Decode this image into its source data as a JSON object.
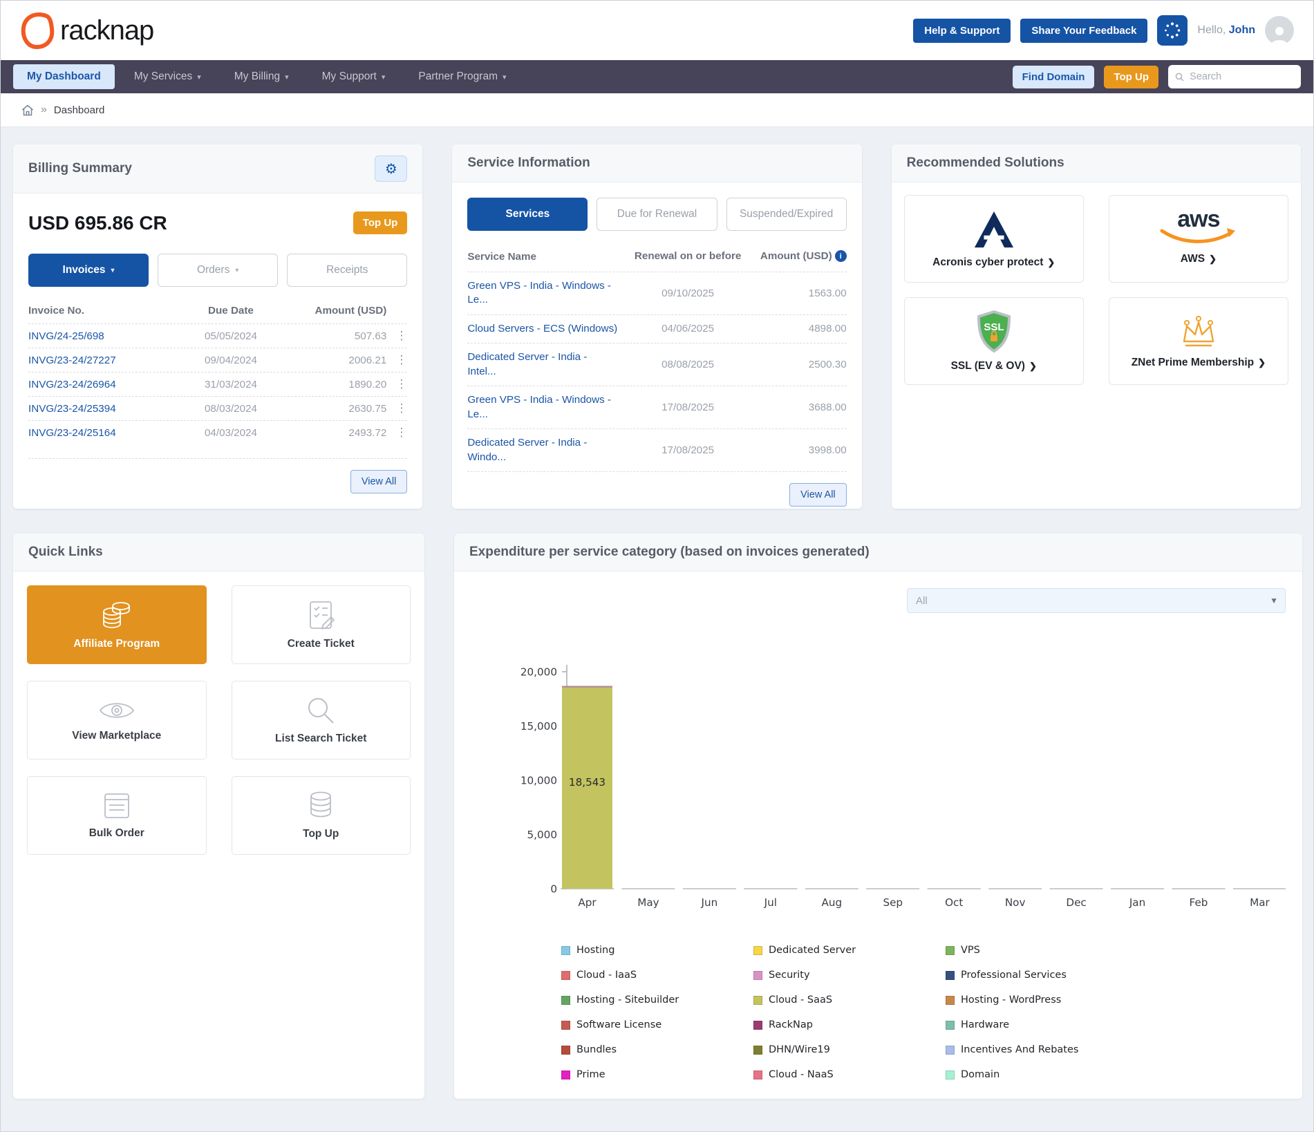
{
  "header": {
    "brand": "racknap",
    "help_button": "Help & Support",
    "feedback_button": "Share Your Feedback",
    "greeting_prefix": "Hello,",
    "greeting_name": "John"
  },
  "nav": {
    "items": [
      {
        "label": "My Dashboard"
      },
      {
        "label": "My Services"
      },
      {
        "label": "My Billing"
      },
      {
        "label": "My Support"
      },
      {
        "label": "Partner Program"
      }
    ],
    "find_domain": "Find Domain",
    "top_up": "Top Up",
    "search_placeholder": "Search"
  },
  "breadcrumb": {
    "separator": "»",
    "current": "Dashboard"
  },
  "billing": {
    "title": "Billing Summary",
    "balance": "USD 695.86 CR",
    "top_up": "Top Up",
    "tabs": {
      "invoices": "Invoices",
      "orders": "Orders",
      "receipts": "Receipts"
    },
    "columns": {
      "invoice": "Invoice No.",
      "due": "Due Date",
      "amount": "Amount (USD)"
    },
    "rows": [
      {
        "invoice": "INVG/24-25/698",
        "due": "05/05/2024",
        "amount": "507.63"
      },
      {
        "invoice": "INVG/23-24/27227",
        "due": "09/04/2024",
        "amount": "2006.21"
      },
      {
        "invoice": "INVG/23-24/26964",
        "due": "31/03/2024",
        "amount": "1890.20"
      },
      {
        "invoice": "INVG/23-24/25394",
        "due": "08/03/2024",
        "amount": "2630.75"
      },
      {
        "invoice": "INVG/23-24/25164",
        "due": "04/03/2024",
        "amount": "2493.72"
      }
    ],
    "view_all": "View All"
  },
  "services": {
    "title": "Service Information",
    "tabs": {
      "services": "Services",
      "due": "Due for Renewal",
      "suspended": "Suspended/Expired"
    },
    "columns": {
      "name": "Service Name",
      "renewal": "Renewal on or before",
      "amount": "Amount (USD)"
    },
    "rows": [
      {
        "name": "Green VPS - India - Windows - Le...",
        "renewal": "09/10/2025",
        "amount": "1563.00"
      },
      {
        "name": "Cloud Servers - ECS (Windows)",
        "renewal": "04/06/2025",
        "amount": "4898.00"
      },
      {
        "name": "Dedicated Server - India - Intel...",
        "renewal": "08/08/2025",
        "amount": "2500.30"
      },
      {
        "name": "Green VPS - India - Windows - Le...",
        "renewal": "17/08/2025",
        "amount": "3688.00"
      },
      {
        "name": "Dedicated Server - India - Windo...",
        "renewal": "17/08/2025",
        "amount": "3998.00"
      }
    ],
    "view_all": "View All"
  },
  "recommended": {
    "title": "Recommended Solutions",
    "tiles": [
      {
        "label": "Acronis cyber protect",
        "icon": "acronis-logo"
      },
      {
        "label": "AWS",
        "icon": "aws-logo"
      },
      {
        "label": "SSL (EV & OV)",
        "icon": "ssl-shield"
      },
      {
        "label": "ZNet Prime Membership",
        "icon": "crown"
      }
    ]
  },
  "quick_links": {
    "title": "Quick Links",
    "items": [
      {
        "label": "Affiliate Program",
        "icon": "coins-icon",
        "highlight": true
      },
      {
        "label": "Create Ticket",
        "icon": "ticket-checklist-icon"
      },
      {
        "label": "View Marketplace",
        "icon": "eye-icon"
      },
      {
        "label": "List Search Ticket",
        "icon": "magnifier-icon"
      },
      {
        "label": "Bulk Order",
        "icon": "document-icon"
      },
      {
        "label": "Top Up",
        "icon": "coin-stack-icon"
      }
    ]
  },
  "chart": {
    "title": "Expenditure per service category (based on invoices generated)",
    "filter_value": "All"
  },
  "chart_data": {
    "type": "bar",
    "stacked": true,
    "title": "Expenditure per service category (based on invoices generated)",
    "categories": [
      "Apr",
      "May",
      "Jun",
      "Jul",
      "Aug",
      "Sep",
      "Oct",
      "Nov",
      "Dec",
      "Jan",
      "Feb",
      "Mar"
    ],
    "series": [
      {
        "name": "Cloud - SaaS",
        "color": "#C3C45F",
        "values": [
          18543,
          0,
          0,
          0,
          0,
          0,
          0,
          0,
          0,
          0,
          0,
          0
        ]
      },
      {
        "name": "Security",
        "color": "#AF8A92",
        "values": [
          150,
          0,
          0,
          0,
          0,
          0,
          0,
          0,
          0,
          0,
          0,
          0
        ],
        "note": "thin top strip of Apr bar, value estimated from pixels"
      }
    ],
    "bar_label": "18,543",
    "bar_label_month": "Apr",
    "ylim": [
      0,
      20000
    ],
    "yticks": [
      0,
      5000,
      10000,
      15000,
      20000
    ],
    "grid": false,
    "legend_position": "bottom",
    "legend": [
      {
        "label": "Hosting",
        "color": "#85C9E8"
      },
      {
        "label": "Cloud - IaaS",
        "color": "#DF6E6E"
      },
      {
        "label": "Hosting - Sitebuilder",
        "color": "#63A663"
      },
      {
        "label": "Software License",
        "color": "#C55B52"
      },
      {
        "label": "Bundles",
        "color": "#B54C3B"
      },
      {
        "label": "Prime",
        "color": "#E61FC4"
      },
      {
        "label": "Dedicated Server",
        "color": "#F6D645"
      },
      {
        "label": "Security",
        "color": "#D893C5"
      },
      {
        "label": "Cloud - SaaS",
        "color": "#C3C45F"
      },
      {
        "label": "RackNap",
        "color": "#9B3D72"
      },
      {
        "label": "DHN/Wire19",
        "color": "#7C8030"
      },
      {
        "label": "Cloud - NaaS",
        "color": "#E77287"
      },
      {
        "label": "VPS",
        "color": "#7CB55C"
      },
      {
        "label": "Professional Services",
        "color": "#36517F"
      },
      {
        "label": "Hosting - WordPress",
        "color": "#C8874A"
      },
      {
        "label": "Hardware",
        "color": "#7EBEAD"
      },
      {
        "label": "Incentives And Rebates",
        "color": "#A9BCEA"
      },
      {
        "label": "Domain",
        "color": "#A5F2D3"
      }
    ]
  }
}
